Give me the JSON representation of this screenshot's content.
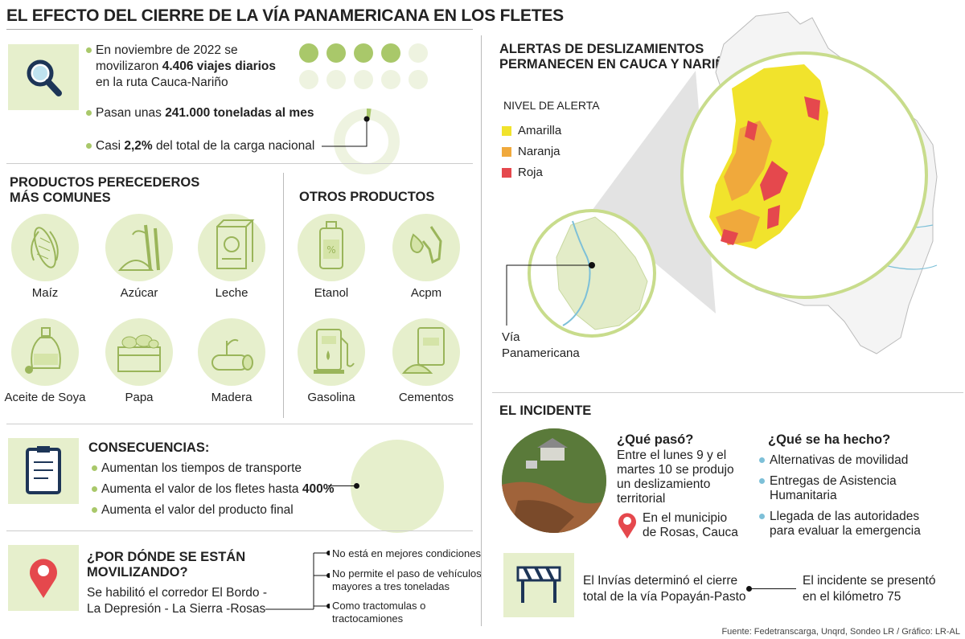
{
  "title": "EL EFECTO DEL CIERRE DE LA VÍA PANAMERICANA EN LOS FLETES",
  "stats": {
    "line1a": "En noviembre de 2022 se",
    "line1b_pre": "movilizaron ",
    "line1b_bold": "4.406 viajes diarios",
    "line1c": "en la ruta Cauca-Nariño",
    "line2_pre": "Pasan unas ",
    "line2_bold": "241.000 toneladas al mes",
    "line3_pre": "Casi ",
    "line3_bold": "2,2%",
    "line3_post": " del total de la carga nacional",
    "dots_filled": 4,
    "dots_total": 10,
    "donut_percent": 2.2
  },
  "perishables": {
    "heading1": "PRODUCTOS PERECEDEROS",
    "heading2": "MÁS COMUNES",
    "items": [
      "Maíz",
      "Azúcar",
      "Leche",
      "Aceite de Soya",
      "Papa",
      "Madera"
    ]
  },
  "others": {
    "heading": "OTROS PRODUCTOS",
    "items": [
      "Etanol",
      "Acpm",
      "Gasolina",
      "Cementos"
    ]
  },
  "consequences": {
    "heading": "CONSECUENCIAS:",
    "item1": "Aumentan los tiempos de transporte",
    "item2_pre": "Aumenta el valor de los fletes hasta ",
    "item2_bold": "400%",
    "item3": "Aumenta el valor del producto final"
  },
  "route": {
    "heading1": "¿POR DÓNDE SE ESTÁN",
    "heading2": "MOVILIZANDO?",
    "text1": "Se habilitó el corredor El Bordo -",
    "text2": "La Depresión - La Sierra -Rosas",
    "note1": "No está en mejores condiciones",
    "note2a": "No permite el paso de vehículos",
    "note2b": "mayores a tres toneladas",
    "note3a": "Como tractomulas o",
    "note3b": "tractocamiones"
  },
  "map": {
    "heading1": "ALERTAS DE DESLIZAMIENTOS",
    "heading2": "PERMANECEN EN CAUCA Y NARIÑO",
    "legend_title": "NIVEL DE ALERTA",
    "legend": [
      {
        "label": "Amarilla",
        "color": "#f1e32c"
      },
      {
        "label": "Naranja",
        "color": "#f0a93c"
      },
      {
        "label": "Roja",
        "color": "#e5484d"
      }
    ],
    "via_label1": "Vía",
    "via_label2": "Panamericana"
  },
  "incident": {
    "heading": "EL INCIDENTE",
    "what_heading": "¿Qué pasó?",
    "what1": "Entre el lunes 9 y el",
    "what2": "martes 10 se produjo",
    "what3": "un deslizamiento",
    "what4": "territorial",
    "loc1": "En el municipio",
    "loc2": "de Rosas, Cauca",
    "done_heading": "¿Qué se ha hecho?",
    "done1": "Alternativas de movilidad",
    "done2a": "Entregas de Asistencia",
    "done2b": "Humanitaria",
    "done3a": "Llegada de las autoridades",
    "done3b": "para evaluar la emergencia",
    "closure1": "El Invías determinó el cierre",
    "closure2": "total de la vía Popayán-Pasto",
    "km1": "El incidente se presentó",
    "km2": "en el kilómetro 75"
  },
  "source": "Fuente: Fedetranscarga, Unqrd, Sondeo LR / Gráfico: LR-AL",
  "colors": {
    "accent_green": "#a9c86a",
    "light_green": "#e6efcc",
    "dot_light": "#eef3e0",
    "water": "#7dc0d8"
  }
}
